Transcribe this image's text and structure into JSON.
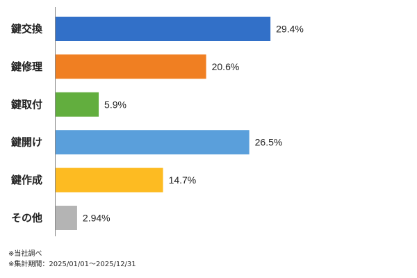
{
  "chart_data": {
    "type": "bar",
    "orientation": "horizontal",
    "categories": [
      "鍵交換",
      "鍵修理",
      "鍵取付",
      "鍵開け",
      "鍵作成",
      "その他"
    ],
    "values": [
      29.4,
      20.6,
      5.9,
      26.5,
      14.7,
      2.94
    ],
    "value_labels": [
      "29.4%",
      "20.6%",
      "5.9%",
      "26.5%",
      "14.7%",
      "2.94%"
    ],
    "colors": [
      "#3270C8",
      "#F07F22",
      "#62AE3E",
      "#5A9FDB",
      "#FDBB22",
      "#B4B4B4"
    ],
    "xlim": [
      0,
      33
    ],
    "grid": false,
    "legend": "none"
  },
  "footnotes": [
    "※当社調べ",
    "※集計期間：2025/01/01～2025/12/31"
  ]
}
